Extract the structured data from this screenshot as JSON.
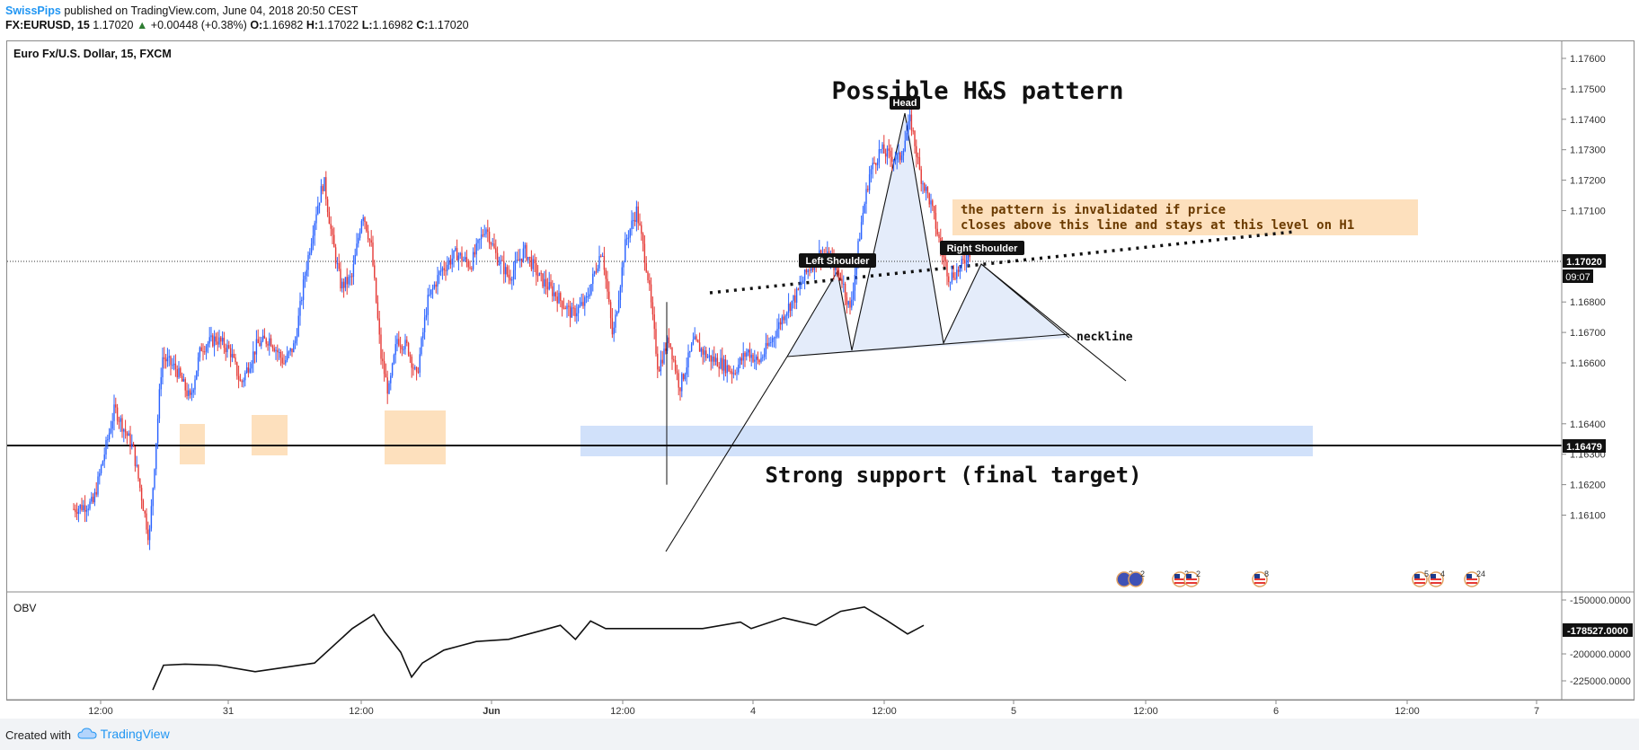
{
  "header": {
    "author": "SwissPips",
    "published": " published on TradingView.com, June 04, 2018 20:50 CEST",
    "symbol": "FX:EURUSD, 15",
    "last": "1.17020",
    "change_arrow": "▲",
    "change": "+0.00448 (+0.38%)",
    "o_label": "O:",
    "o_value": "1.16982",
    "h_label": "H:",
    "h_value": "1.17022",
    "l_label": "L:",
    "l_value": "1.16982",
    "c_label": "C:",
    "c_value": "1.17020"
  },
  "footer": {
    "created_with": "Created with",
    "brand": "TradingView"
  },
  "colors": {
    "up": "#2962ff",
    "down": "#e53935",
    "pattern_fill": "#dde7f9",
    "support_zone": "#c9dcf9",
    "highlight": "#fde0bd"
  },
  "chart_data": {
    "type": "candlestick",
    "title": "Euro Fx/U.S. Dollar, 15, FXCM",
    "x_tick_labels": [
      "12:00",
      "31",
      "12:00",
      "Jun",
      "12:00",
      "4",
      "12:00",
      "5",
      "12:00",
      "6",
      "12:00",
      "7"
    ],
    "price_axis": {
      "ticks": [
        "1.17600",
        "1.17500",
        "1.17400",
        "1.17300",
        "1.17200",
        "1.17100",
        "1.16800",
        "1.16700",
        "1.16600",
        "1.16400",
        "1.16300",
        "1.16200",
        "1.16100"
      ],
      "range": [
        1.1607,
        1.1771
      ],
      "current_price": "1.17020",
      "countdown": "09:07",
      "support_price": "1.16479"
    },
    "price_path": [
      [
        0,
        1.1612
      ],
      [
        18,
        1.1614
      ],
      [
        38,
        1.1645
      ],
      [
        55,
        1.1632
      ],
      [
        70,
        1.1602
      ],
      [
        82,
        1.1662
      ],
      [
        95,
        1.1658
      ],
      [
        108,
        1.1648
      ],
      [
        118,
        1.1665
      ],
      [
        132,
        1.1668
      ],
      [
        145,
        1.1664
      ],
      [
        155,
        1.1653
      ],
      [
        170,
        1.1666
      ],
      [
        182,
        1.1668
      ],
      [
        195,
        1.166
      ],
      [
        205,
        1.1666
      ],
      [
        214,
        1.1688
      ],
      [
        225,
        1.171
      ],
      [
        232,
        1.172
      ],
      [
        240,
        1.17
      ],
      [
        248,
        1.1685
      ],
      [
        258,
        1.1688
      ],
      [
        268,
        1.171
      ],
      [
        276,
        1.1698
      ],
      [
        285,
        1.1662
      ],
      [
        292,
        1.165
      ],
      [
        300,
        1.1668
      ],
      [
        310,
        1.1665
      ],
      [
        318,
        1.1655
      ],
      [
        328,
        1.168
      ],
      [
        340,
        1.169
      ],
      [
        355,
        1.1696
      ],
      [
        368,
        1.1692
      ],
      [
        382,
        1.1705
      ],
      [
        392,
        1.1695
      ],
      [
        404,
        1.1688
      ],
      [
        418,
        1.1697
      ],
      [
        432,
        1.1688
      ],
      [
        448,
        1.1682
      ],
      [
        462,
        1.1676
      ],
      [
        475,
        1.168
      ],
      [
        490,
        1.1698
      ],
      [
        500,
        1.1668
      ],
      [
        512,
        1.17
      ],
      [
        522,
        1.171
      ],
      [
        532,
        1.169
      ],
      [
        542,
        1.1658
      ],
      [
        552,
        1.1668
      ],
      [
        562,
        1.1652
      ],
      [
        575,
        1.1667
      ],
      [
        588,
        1.1662
      ],
      [
        600,
        1.166
      ],
      [
        612,
        1.1657
      ],
      [
        625,
        1.1664
      ],
      [
        635,
        1.166
      ],
      [
        648,
        1.1668
      ],
      [
        660,
        1.1677
      ],
      [
        670,
        1.1682
      ],
      [
        680,
        1.169
      ],
      [
        692,
        1.1696
      ],
      [
        702,
        1.1694
      ],
      [
        712,
        1.1688
      ],
      [
        720,
        1.1677
      ],
      [
        730,
        1.1705
      ],
      [
        738,
        1.1722
      ],
      [
        748,
        1.173
      ],
      [
        756,
        1.1728
      ],
      [
        766,
        1.1727
      ],
      [
        776,
        1.174
      ],
      [
        785,
        1.1722
      ],
      [
        795,
        1.1712
      ],
      [
        804,
        1.1698
      ],
      [
        812,
        1.1688
      ],
      [
        822,
        1.1691
      ],
      [
        832,
        1.1697
      ]
    ],
    "patterns": {
      "title": "Possible H&S pattern",
      "left_shoulder": "Left Shoulder",
      "head": "Head",
      "right_shoulder": "Right Shoulder",
      "neckline": "neckline",
      "invalidation_note_line1": "the pattern is invalidated if price",
      "invalidation_note_line2": "closes above this line and stays at this level on H1",
      "support_label": "Strong support (final target)"
    },
    "events": [
      {
        "icon": "eu-flag-icon",
        "count": "2"
      },
      {
        "icon": "eu-flag-icon",
        "count": "2"
      },
      {
        "icon": "us-flag-icon",
        "count": "2"
      },
      {
        "icon": "us-flag-icon",
        "count": "2"
      },
      {
        "icon": "us-flag-icon",
        "count": "8"
      },
      {
        "icon": "us-flag-icon",
        "count": "5"
      },
      {
        "icon": "us-flag-icon",
        "count": "4"
      },
      {
        "icon": "us-flag-icon",
        "count": "24"
      }
    ],
    "obv": {
      "label": "OBV",
      "ticks": [
        "-150000.0000",
        "-200000.0000",
        "-225000.0000"
      ],
      "current": "-178527.0000",
      "path": [
        [
          0,
          -232000
        ],
        [
          10,
          -212000
        ],
        [
          30,
          -208000
        ],
        [
          60,
          -212000
        ],
        [
          95,
          -215000
        ],
        [
          150,
          -210000
        ],
        [
          185,
          -175000
        ],
        [
          205,
          -165000
        ],
        [
          215,
          -178000
        ],
        [
          230,
          -200000
        ],
        [
          240,
          -220000
        ],
        [
          250,
          -210000
        ],
        [
          270,
          -195000
        ],
        [
          300,
          -190000
        ],
        [
          330,
          -185000
        ],
        [
          360,
          -180000
        ],
        [
          378,
          -172000
        ],
        [
          392,
          -188000
        ],
        [
          406,
          -168000
        ],
        [
          420,
          -178000
        ],
        [
          450,
          -175000
        ],
        [
          480,
          -178000
        ],
        [
          510,
          -175000
        ],
        [
          545,
          -172000
        ],
        [
          555,
          -175000
        ],
        [
          585,
          -168000
        ],
        [
          615,
          -172000
        ],
        [
          638,
          -162000
        ],
        [
          660,
          -155000
        ],
        [
          680,
          -170000
        ],
        [
          700,
          -180000
        ],
        [
          715,
          -175000
        ]
      ]
    }
  }
}
